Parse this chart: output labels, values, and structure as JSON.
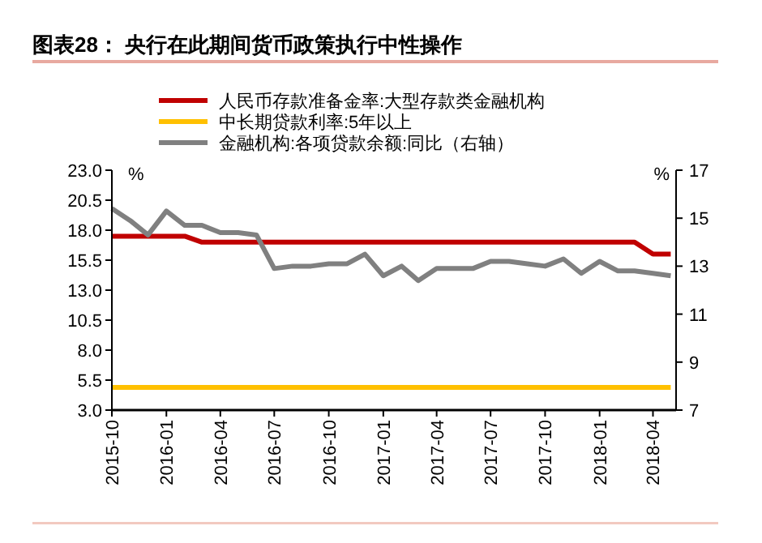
{
  "chart_data": {
    "type": "line",
    "title": "图表28：  央行在此期间货币政策执行中性操作",
    "ylabel": "%",
    "y2label": "%",
    "x": [
      "2015-10",
      "2015-11",
      "2015-12",
      "2016-01",
      "2016-02",
      "2016-03",
      "2016-04",
      "2016-05",
      "2016-06",
      "2016-07",
      "2016-08",
      "2016-09",
      "2016-10",
      "2016-11",
      "2016-12",
      "2017-01",
      "2017-02",
      "2017-03",
      "2017-04",
      "2017-05",
      "2017-06",
      "2017-07",
      "2017-08",
      "2017-09",
      "2017-10",
      "2017-11",
      "2017-12",
      "2018-01",
      "2018-02",
      "2018-03",
      "2018-04",
      "2018-05"
    ],
    "series": [
      {
        "name": "人民币存款准备金率:大型存款类金融机构",
        "color": "#c00000",
        "values": [
          17.5,
          17.5,
          17.5,
          17.5,
          17.5,
          17.0,
          17.0,
          17.0,
          17.0,
          17.0,
          17.0,
          17.0,
          17.0,
          17.0,
          17.0,
          17.0,
          17.0,
          17.0,
          17.0,
          17.0,
          17.0,
          17.0,
          17.0,
          17.0,
          17.0,
          17.0,
          17.0,
          17.0,
          17.0,
          17.0,
          16.0,
          16.0
        ]
      },
      {
        "name": "中长期贷款利率:5年以上",
        "color": "#ffc000",
        "values": [
          4.9,
          4.9,
          4.9,
          4.9,
          4.9,
          4.9,
          4.9,
          4.9,
          4.9,
          4.9,
          4.9,
          4.9,
          4.9,
          4.9,
          4.9,
          4.9,
          4.9,
          4.9,
          4.9,
          4.9,
          4.9,
          4.9,
          4.9,
          4.9,
          4.9,
          4.9,
          4.9,
          4.9,
          4.9,
          4.9,
          4.9,
          4.9
        ]
      },
      {
        "name": "金融机构:各项贷款余额:同比（右轴）",
        "color": "#808080",
        "axis": "y2",
        "values": [
          15.4,
          14.9,
          14.3,
          15.3,
          14.7,
          14.7,
          14.4,
          14.4,
          14.3,
          12.9,
          13.0,
          13.0,
          13.1,
          13.1,
          13.5,
          12.6,
          13.0,
          12.4,
          12.9,
          12.9,
          12.9,
          13.2,
          13.2,
          13.1,
          13.0,
          13.3,
          12.7,
          13.2,
          12.8,
          12.8,
          12.7,
          12.6
        ]
      }
    ],
    "xlim": [
      "2015-10",
      "2018-05-10"
    ],
    "xticks": [
      "2015-10",
      "2016-01",
      "2016-04",
      "2016-07",
      "2016-10",
      "2017-01",
      "2017-04",
      "2017-07",
      "2017-10",
      "2018-01",
      "2018-04"
    ],
    "ylim": [
      3.0,
      23.0
    ],
    "yticks": [
      {
        "value": 3,
        "label": "3.0"
      },
      {
        "value": 5.5,
        "label": "5.5"
      },
      {
        "value": 8,
        "label": "8.0"
      },
      {
        "value": 10.5,
        "label": "10.5"
      },
      {
        "value": 13,
        "label": "13.0"
      },
      {
        "value": 15.5,
        "label": "15.5"
      },
      {
        "value": 18,
        "label": "18.0"
      },
      {
        "value": 20.5,
        "label": "20.5"
      },
      {
        "value": 23,
        "label": "23.0"
      }
    ],
    "y2lim": [
      7,
      17
    ],
    "y2ticks": [
      7,
      9,
      11,
      13,
      15,
      17
    ],
    "legend": "top",
    "grid": false,
    "marker": "none",
    "line_style": "solid"
  }
}
